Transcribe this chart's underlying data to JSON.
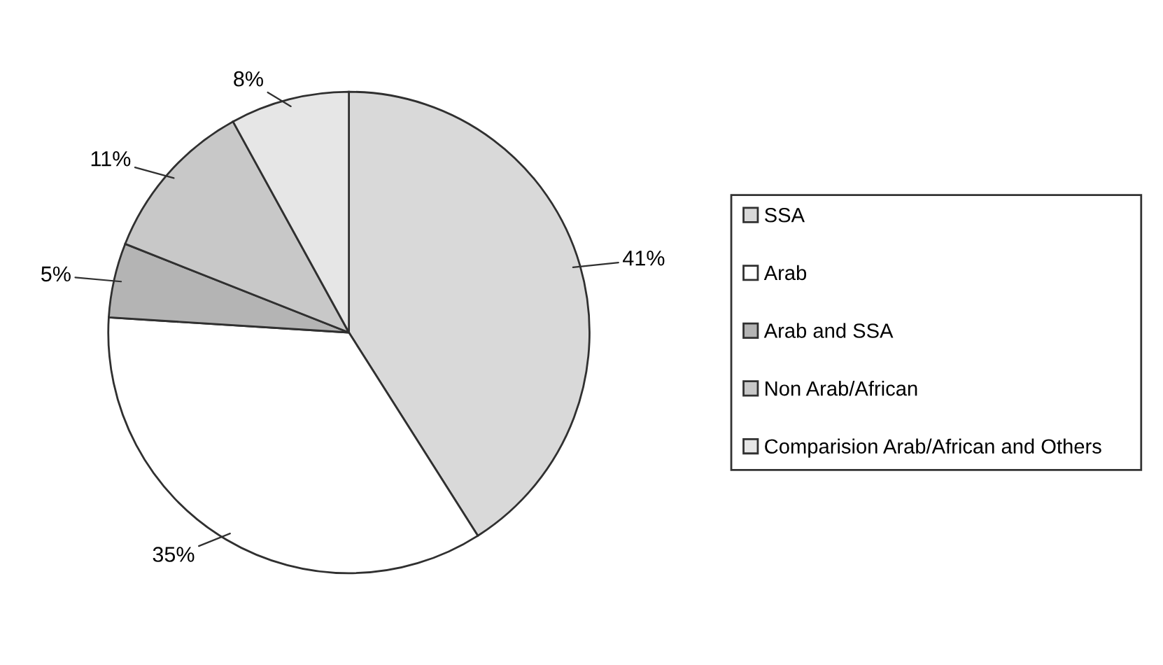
{
  "chart_data": {
    "type": "pie",
    "categories": [
      "SSA",
      "Arab",
      "Arab and SSA",
      "Non Arab/African",
      "Comparision Arab/African and Others"
    ],
    "values": [
      41,
      35,
      5,
      11,
      8
    ],
    "value_labels": [
      "41%",
      "35%",
      "5%",
      "11%",
      "8%"
    ],
    "colors": [
      "#d9d9d9",
      "#ffffff",
      "#b4b4b4",
      "#c8c8c8",
      "#e6e6e6"
    ],
    "legend": "right"
  }
}
